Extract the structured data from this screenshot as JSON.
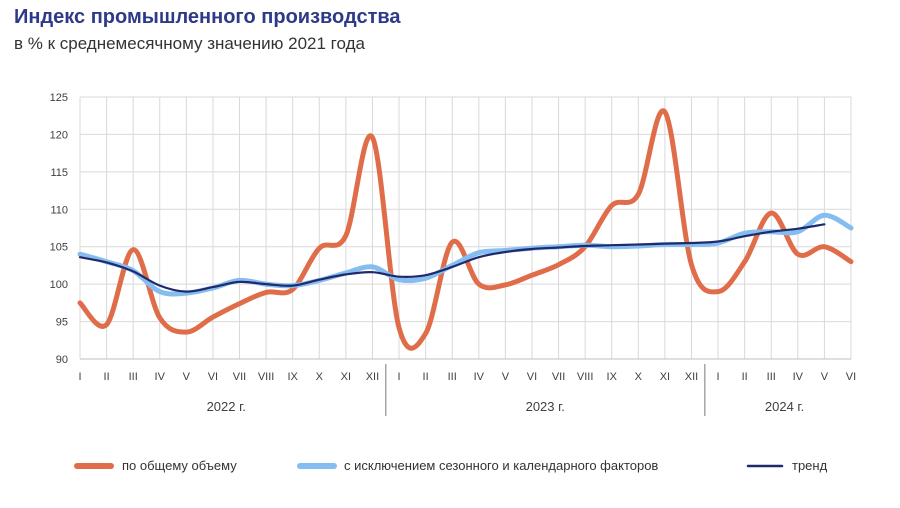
{
  "title": "Индекс промышленного производства",
  "subtitle": "в % к среднемесячному значению 2021 года",
  "colors": {
    "total": "#e06d4a",
    "seasonal": "#85bdf0",
    "trend": "#1f2a6d",
    "grid": "#d9d9d9",
    "title": "#2e3a87"
  },
  "chart_data": {
    "type": "line",
    "title": "Индекс промышленного производства",
    "subtitle": "в % к среднемесячному значению 2021 года",
    "ylim": [
      90,
      125
    ],
    "yticks": [
      90,
      95,
      100,
      105,
      110,
      115,
      120,
      125
    ],
    "grid": true,
    "legend_position": "bottom",
    "categories": [
      "I",
      "II",
      "III",
      "IV",
      "V",
      "VI",
      "VII",
      "VIII",
      "IX",
      "X",
      "XI",
      "XII",
      "I",
      "II",
      "III",
      "IV",
      "V",
      "VI",
      "VII",
      "VIII",
      "IX",
      "X",
      "XI",
      "XII",
      "I",
      "II",
      "III",
      "IV",
      "V",
      "VI"
    ],
    "years": [
      {
        "label": "2022 г.",
        "start": 0,
        "end": 11
      },
      {
        "label": "2023 г.",
        "start": 12,
        "end": 23
      },
      {
        "label": "2024 г.",
        "start": 24,
        "end": 29
      }
    ],
    "series": [
      {
        "name": "по общему объему",
        "key": "total",
        "values": [
          97.5,
          94.6,
          104.6,
          95.5,
          93.6,
          95.6,
          97.4,
          98.9,
          99.3,
          104.8,
          106.5,
          119.6,
          94.2,
          93.4,
          105.6,
          100.0,
          99.9,
          101.2,
          102.6,
          105.0,
          110.5,
          112.0,
          123.0,
          102.6,
          99.0,
          103.0,
          109.5,
          104.0,
          105.0,
          103.0
        ]
      },
      {
        "name": "с исключением сезонного и календарного факторов",
        "key": "seasonal",
        "values": [
          104.0,
          103.0,
          101.8,
          99.0,
          98.8,
          99.5,
          100.5,
          100.0,
          99.8,
          100.5,
          101.5,
          102.3,
          100.6,
          100.8,
          102.5,
          104.2,
          104.5,
          104.8,
          105.0,
          105.2,
          105.0,
          105.1,
          105.3,
          105.3,
          105.5,
          106.8,
          107.0,
          107.0,
          109.2,
          107.5
        ]
      },
      {
        "name": "тренд",
        "key": "trend",
        "values": [
          103.6,
          102.9,
          101.7,
          99.8,
          99.0,
          99.6,
          100.3,
          100.0,
          99.8,
          100.6,
          101.3,
          101.6,
          101.0,
          101.2,
          102.3,
          103.6,
          104.3,
          104.7,
          104.9,
          105.1,
          105.2,
          105.3,
          105.4,
          105.5,
          105.7,
          106.4,
          107.0,
          107.4,
          108.0,
          null
        ]
      }
    ]
  }
}
